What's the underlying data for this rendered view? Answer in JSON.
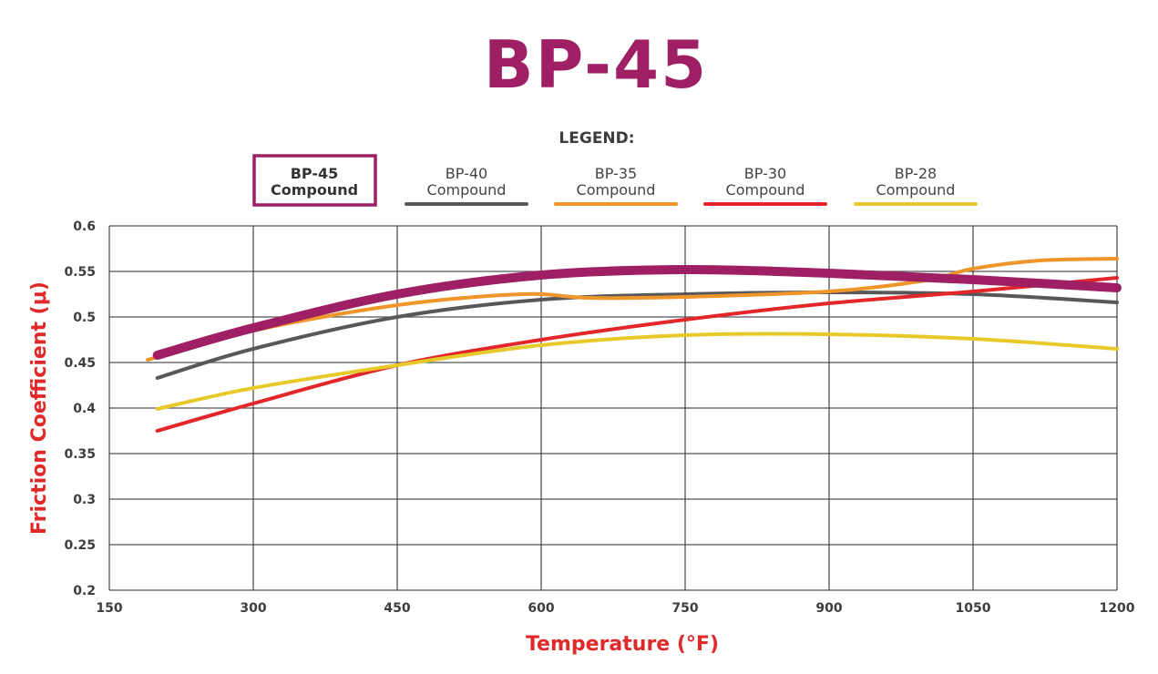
{
  "chart_data": {
    "type": "line",
    "title": "BP-45",
    "legend_title": "LEGEND:",
    "legend_placement": "top",
    "xlabel": "Temperature (°F)",
    "ylabel": "Friction Coefficient (μ)",
    "xlim": [
      150,
      1200
    ],
    "ylim": [
      0.2,
      0.6
    ],
    "xticks": [
      "150",
      "300",
      "450",
      "600",
      "750",
      "900",
      "1050",
      "1200"
    ],
    "yticks": [
      "0.6",
      "0.55",
      "0.5",
      "0.45",
      "0.4",
      "0.35",
      "0.3",
      "0.25",
      "0.2"
    ],
    "grid": true,
    "highlighted_series": "BP-45 Compound",
    "series": [
      {
        "name_line1": "BP-40",
        "name_line2": "Compound",
        "color": "#58585a",
        "x": [
          200,
          300,
          450,
          600,
          750,
          900,
          1050,
          1200
        ],
        "y": [
          0.433,
          0.465,
          0.5,
          0.519,
          0.525,
          0.527,
          0.525,
          0.516
        ]
      },
      {
        "name_line1": "BP-35",
        "name_line2": "Compound",
        "color": "#f0952a",
        "x": [
          190,
          300,
          450,
          580,
          650,
          750,
          900,
          1000,
          1050,
          1120,
          1200
        ],
        "y": [
          0.453,
          0.485,
          0.513,
          0.525,
          0.521,
          0.522,
          0.528,
          0.54,
          0.553,
          0.562,
          0.564
        ]
      },
      {
        "name_line1": "BP-30",
        "name_line2": "Compound",
        "color": "#e3262a",
        "x": [
          200,
          300,
          450,
          600,
          750,
          900,
          1050,
          1200
        ],
        "y": [
          0.375,
          0.405,
          0.447,
          0.475,
          0.497,
          0.515,
          0.528,
          0.543
        ]
      },
      {
        "name_line1": "BP-28",
        "name_line2": "Compound",
        "color": "#e8c92a",
        "x": [
          200,
          300,
          450,
          600,
          750,
          900,
          1050,
          1200
        ],
        "y": [
          0.399,
          0.422,
          0.447,
          0.469,
          0.48,
          0.481,
          0.476,
          0.465
        ]
      },
      {
        "name_line1": "BP-45",
        "name_line2": "Compound",
        "color": "#9e1f63",
        "highlight": true,
        "x": [
          200,
          300,
          450,
          600,
          750,
          900,
          1050,
          1200
        ],
        "y": [
          0.458,
          0.488,
          0.525,
          0.546,
          0.552,
          0.548,
          0.541,
          0.532
        ]
      }
    ],
    "legend_order": [
      "BP-45",
      "BP-40",
      "BP-35",
      "BP-30",
      "BP-28"
    ]
  }
}
